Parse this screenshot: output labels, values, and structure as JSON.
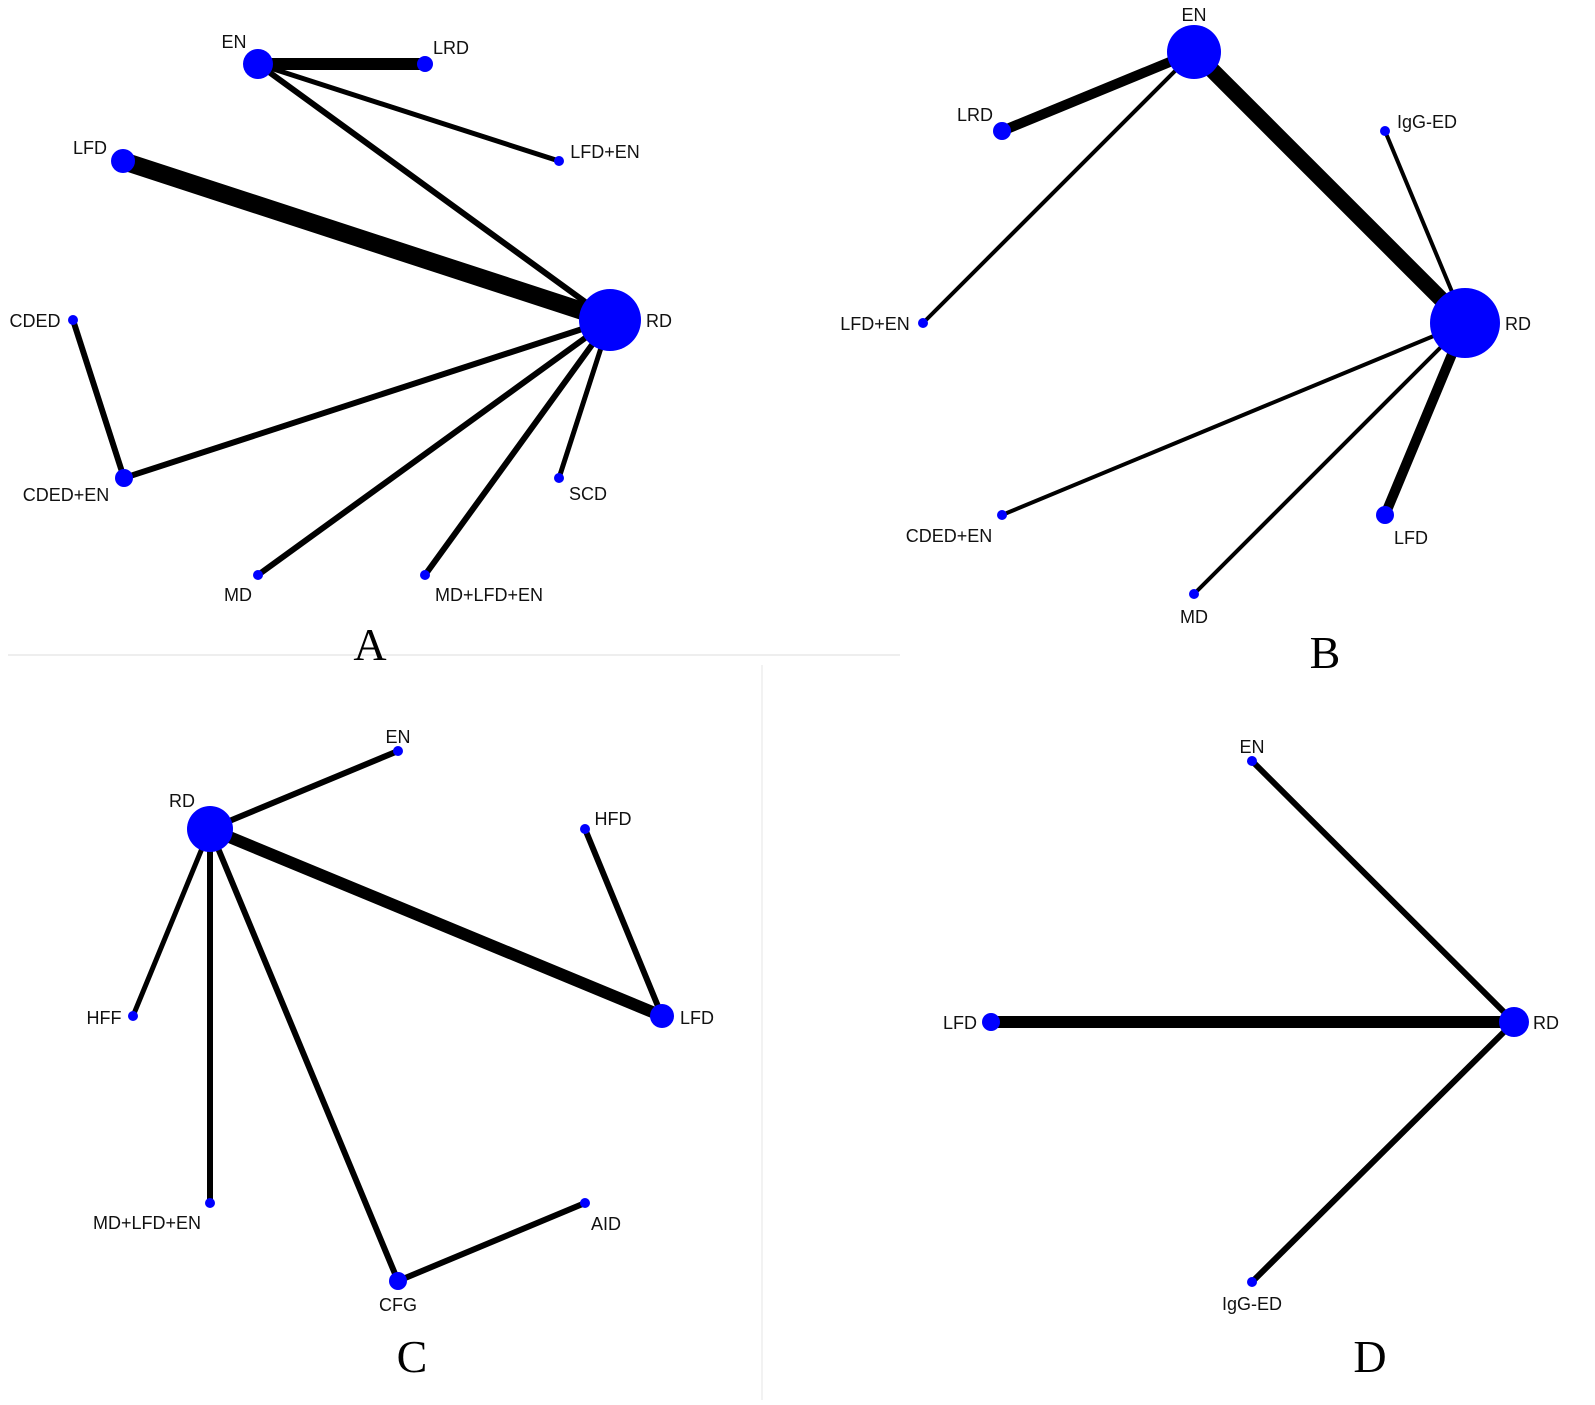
{
  "colors": {
    "node": "#0000ff",
    "edge": "#000000"
  },
  "panels": [
    {
      "letter": "A",
      "nodes": [
        {
          "name": "EN",
          "size": 15
        },
        {
          "name": "LRD",
          "size": 8
        },
        {
          "name": "LFD+EN",
          "size": 5
        },
        {
          "name": "LFD",
          "size": 12
        },
        {
          "name": "RD",
          "size": 31
        },
        {
          "name": "CDED",
          "size": 5
        },
        {
          "name": "CDED+EN",
          "size": 9
        },
        {
          "name": "SCD",
          "size": 5
        },
        {
          "name": "MD",
          "size": 5
        },
        {
          "name": "MD+LFD+EN",
          "size": 5
        }
      ],
      "edges": [
        {
          "from": "EN",
          "to": "LRD",
          "weight": 12
        },
        {
          "from": "EN",
          "to": "LFD+EN",
          "weight": 5
        },
        {
          "from": "EN",
          "to": "RD",
          "weight": 6
        },
        {
          "from": "LFD",
          "to": "RD",
          "weight": 18
        },
        {
          "from": "CDED",
          "to": "CDED+EN",
          "weight": 6
        },
        {
          "from": "CDED+EN",
          "to": "RD",
          "weight": 6
        },
        {
          "from": "MD",
          "to": "RD",
          "weight": 6
        },
        {
          "from": "MD+LFD+EN",
          "to": "RD",
          "weight": 6
        },
        {
          "from": "SCD",
          "to": "RD",
          "weight": 5
        }
      ]
    },
    {
      "letter": "B",
      "nodes": [
        {
          "name": "EN",
          "size": 27
        },
        {
          "name": "LRD",
          "size": 9
        },
        {
          "name": "IgG-ED",
          "size": 5
        },
        {
          "name": "LFD+EN",
          "size": 5
        },
        {
          "name": "RD",
          "size": 35
        },
        {
          "name": "CDED+EN",
          "size": 5
        },
        {
          "name": "LFD",
          "size": 9
        },
        {
          "name": "MD",
          "size": 5
        }
      ],
      "edges": [
        {
          "from": "EN",
          "to": "LRD",
          "weight": 10
        },
        {
          "from": "EN",
          "to": "LFD+EN",
          "weight": 4
        },
        {
          "from": "EN",
          "to": "RD",
          "weight": 16
        },
        {
          "from": "IgG-ED",
          "to": "RD",
          "weight": 4
        },
        {
          "from": "CDED+EN",
          "to": "RD",
          "weight": 4
        },
        {
          "from": "MD",
          "to": "RD",
          "weight": 4
        },
        {
          "from": "LFD",
          "to": "RD",
          "weight": 10
        }
      ]
    },
    {
      "letter": "C",
      "nodes": [
        {
          "name": "RD",
          "size": 23
        },
        {
          "name": "EN",
          "size": 5
        },
        {
          "name": "HFD",
          "size": 5
        },
        {
          "name": "LFD",
          "size": 12
        },
        {
          "name": "HFF",
          "size": 5
        },
        {
          "name": "MD+LFD+EN",
          "size": 5
        },
        {
          "name": "CFG",
          "size": 9
        },
        {
          "name": "AID",
          "size": 5
        }
      ],
      "edges": [
        {
          "from": "RD",
          "to": "EN",
          "weight": 6
        },
        {
          "from": "RD",
          "to": "LFD",
          "weight": 12
        },
        {
          "from": "HFD",
          "to": "LFD",
          "weight": 6
        },
        {
          "from": "RD",
          "to": "HFF",
          "weight": 5
        },
        {
          "from": "RD",
          "to": "MD+LFD+EN",
          "weight": 6
        },
        {
          "from": "RD",
          "to": "CFG",
          "weight": 6
        },
        {
          "from": "CFG",
          "to": "AID",
          "weight": 6
        }
      ]
    },
    {
      "letter": "D",
      "nodes": [
        {
          "name": "EN",
          "size": 5
        },
        {
          "name": "LFD",
          "size": 9
        },
        {
          "name": "RD",
          "size": 15
        },
        {
          "name": "IgG-ED",
          "size": 5
        }
      ],
      "edges": [
        {
          "from": "EN",
          "to": "RD",
          "weight": 6
        },
        {
          "from": "LFD",
          "to": "RD",
          "weight": 12
        },
        {
          "from": "IgG-ED",
          "to": "RD",
          "weight": 6
        }
      ]
    }
  ]
}
